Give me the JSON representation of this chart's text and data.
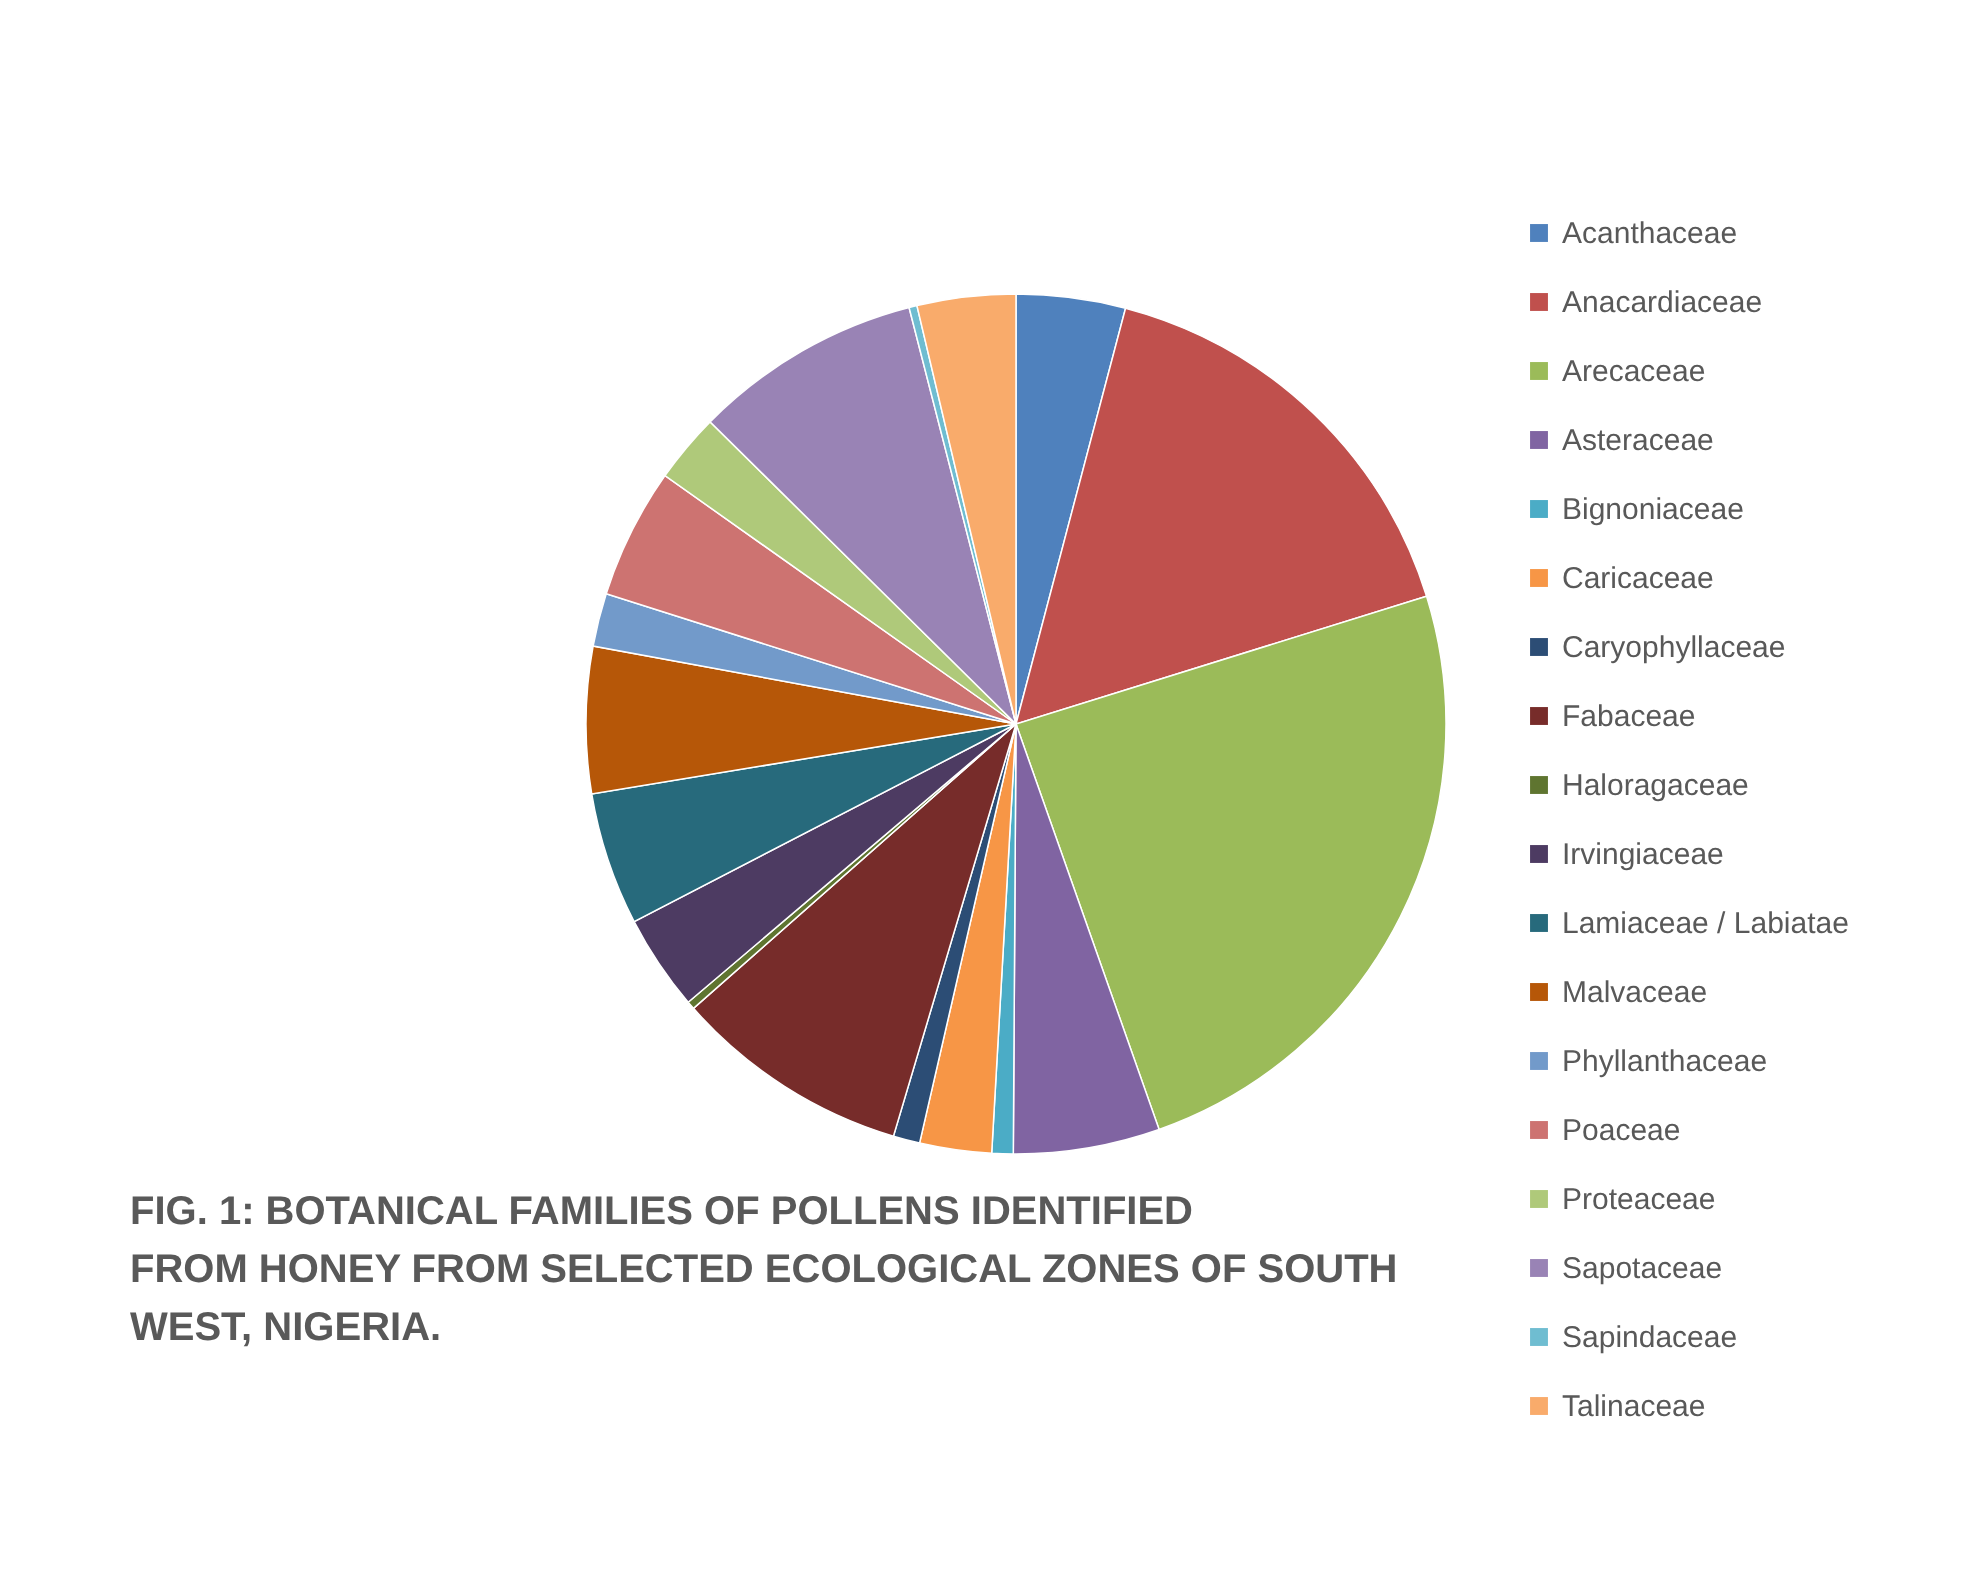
{
  "chart_data": {
    "type": "pie",
    "title": "FIG. 1: BOTANICAL FAMILIES OF POLLENS IDENTIFIED FROM HONEY FROM SELECTED ECOLOGICAL ZONES OF SOUTH WEST, NIGERIA.",
    "categories": [
      "Acanthaceae",
      "Anacardiaceae",
      "Arecaceae",
      "Asteraceae",
      "Bignoniaceae",
      "Caricaceae",
      "Caryophyllaceae",
      "Fabaceae",
      "Haloragaceae",
      "Irvingiaceae",
      "Lamiaceae / Labiatae",
      "Malvaceae",
      "Phyllanthaceae",
      "Poaceae",
      "Proteaceae",
      "Sapotaceae",
      "Sapindaceae",
      "Talinaceae"
    ],
    "values": [
      4.1,
      16.1,
      24.4,
      5.5,
      0.8,
      2.7,
      1.0,
      8.9,
      0.3,
      3.6,
      5.0,
      5.5,
      2.0,
      4.9,
      2.6,
      8.6,
      0.3,
      3.7
    ],
    "colors": [
      "#4f81bd",
      "#c0504d",
      "#9bbb59",
      "#8064a2",
      "#4bacc6",
      "#f79646",
      "#2c4d75",
      "#772c2a",
      "#5f7530",
      "#4d3b62",
      "#276a7c",
      "#b65708",
      "#729aca",
      "#cd7371",
      "#afc97a",
      "#9983b5",
      "#6fbdd1",
      "#f9ab6b"
    ],
    "legend": "right"
  }
}
